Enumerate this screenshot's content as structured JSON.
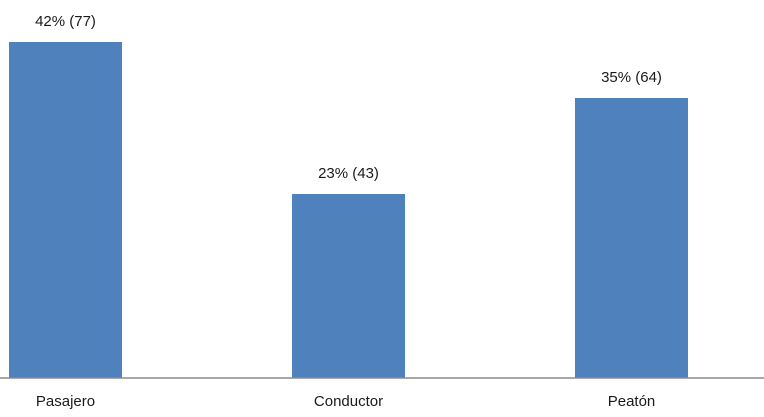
{
  "chart_data": {
    "type": "bar",
    "categories": [
      "Pasajero",
      "Conductor",
      "Peatón"
    ],
    "values": [
      42,
      23,
      35
    ],
    "counts": [
      77,
      43,
      64
    ],
    "data_labels": [
      "42% (77)",
      "23% (43)",
      "35% (64)"
    ],
    "title": "",
    "xlabel": "",
    "ylabel": "",
    "ylim": [
      0,
      42
    ],
    "grid": false,
    "legend": "none",
    "colors": {
      "bar": "#4F81BD",
      "axis": "#8c8c8c"
    }
  }
}
